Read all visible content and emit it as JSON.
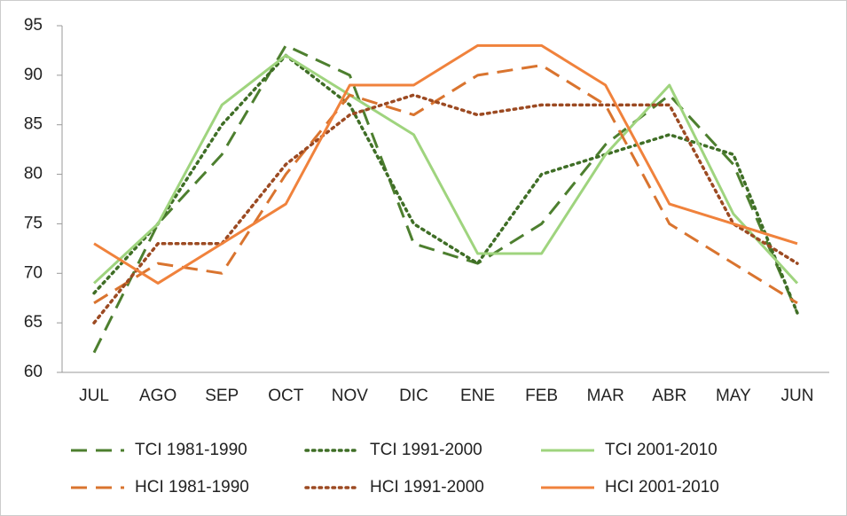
{
  "chart_data": {
    "type": "line",
    "categories": [
      "JUL",
      "AGO",
      "SEP",
      "OCT",
      "NOV",
      "DIC",
      "ENE",
      "FEB",
      "MAR",
      "ABR",
      "MAY",
      "JUN"
    ],
    "ylim": [
      60,
      95
    ],
    "yticks": [
      60,
      65,
      70,
      75,
      80,
      85,
      90,
      95
    ],
    "grid": false,
    "series": [
      {
        "name": "TCI 1981-1990",
        "color": "#4d7f2f",
        "style": "dashed",
        "values": [
          62,
          75,
          82,
          93,
          90,
          73,
          71,
          75,
          83,
          88,
          81,
          66
        ]
      },
      {
        "name": "TCI 1991-2000",
        "color": "#3f6e26",
        "style": "dotted",
        "values": [
          68,
          75,
          85,
          92,
          87,
          75,
          71,
          80,
          82,
          84,
          82,
          66
        ]
      },
      {
        "name": "TCI 2001-2010",
        "color": "#9fd47e",
        "style": "solid",
        "values": [
          69,
          75,
          87,
          92,
          88,
          84,
          72,
          72,
          82,
          89,
          76,
          69
        ]
      },
      {
        "name": "HCI 1981-1990",
        "color": "#d9742f",
        "style": "dashed",
        "values": [
          67,
          71,
          70,
          80,
          88,
          86,
          90,
          91,
          87,
          75,
          71,
          67
        ]
      },
      {
        "name": "HCI 1991-2000",
        "color": "#9c4a22",
        "style": "dotted",
        "values": [
          65,
          73,
          73,
          81,
          86,
          88,
          86,
          87,
          87,
          87,
          75,
          71
        ]
      },
      {
        "name": "HCI 2001-2010",
        "color": "#f0823c",
        "style": "solid",
        "values": [
          73,
          69,
          73,
          77,
          89,
          89,
          93,
          93,
          89,
          77,
          75,
          73
        ]
      }
    ]
  }
}
